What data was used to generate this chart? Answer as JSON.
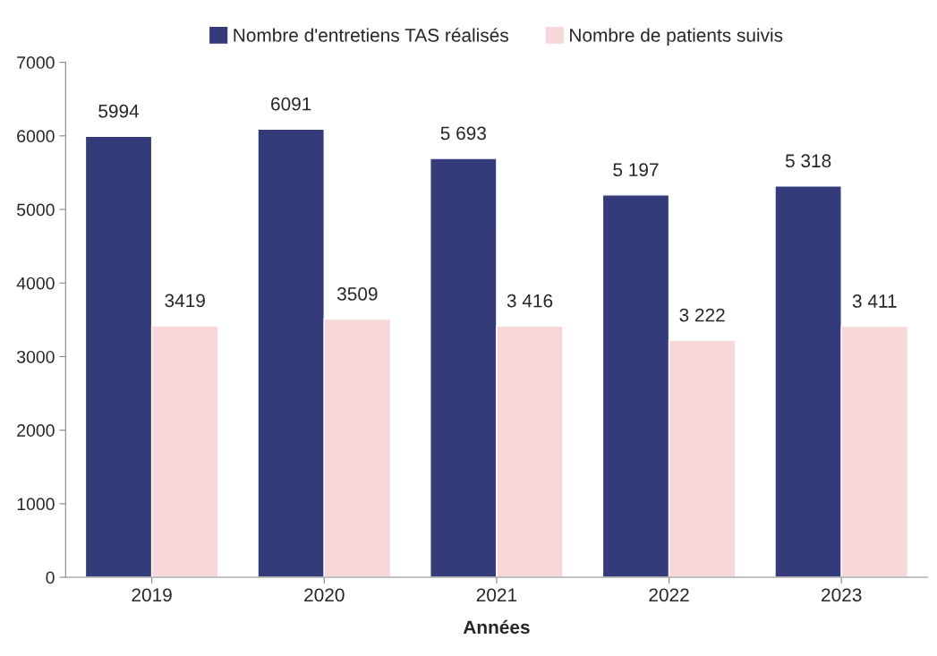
{
  "chart_data": {
    "type": "bar",
    "xlabel": "Années",
    "categories": [
      "2019",
      "2020",
      "2021",
      "2022",
      "2023"
    ],
    "series": [
      {
        "name": "Nombre d'entretiens TAS réalisés",
        "color": "#343b7a",
        "values": [
          5994,
          6091,
          5693,
          5197,
          5318
        ],
        "value_labels": [
          "5994",
          "6091",
          "5 693",
          "5 197",
          "5 318"
        ]
      },
      {
        "name": "Nombre de patients suivis",
        "color": "#f7d7d9",
        "values": [
          3419,
          3509,
          3416,
          3222,
          3411
        ],
        "value_labels": [
          "3419",
          "3509",
          "3 416",
          "3 222",
          "3 411"
        ]
      }
    ],
    "ylim": [
      0,
      7000
    ],
    "yticks": [
      0,
      1000,
      2000,
      3000,
      4000,
      5000,
      6000,
      7000
    ],
    "grid": false,
    "legend": "top"
  }
}
